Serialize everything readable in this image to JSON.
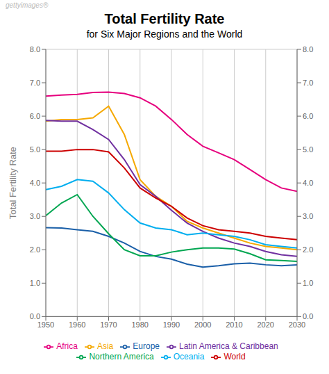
{
  "chart_data": {
    "type": "line",
    "title": "Total Fertility Rate",
    "subtitle": "for Six Major Regions and the World",
    "y_label": "Total Fertility Rate",
    "annotations": [
      "gettyimages®"
    ],
    "x": [
      1950,
      1955,
      1960,
      1965,
      1970,
      1975,
      1980,
      1985,
      1990,
      1995,
      2000,
      2005,
      2010,
      2015,
      2020,
      2025,
      2030
    ],
    "series": [
      {
        "name": "Africa",
        "color": "#e6007e",
        "values": [
          6.6,
          6.63,
          6.65,
          6.71,
          6.72,
          6.68,
          6.55,
          6.3,
          5.9,
          5.45,
          5.1,
          4.9,
          4.7,
          4.4,
          4.1,
          3.85,
          3.75
        ]
      },
      {
        "name": "Asia",
        "color": "#f5a800",
        "values": [
          5.85,
          5.9,
          5.9,
          5.95,
          6.3,
          5.45,
          4.1,
          3.6,
          3.3,
          2.85,
          2.65,
          2.5,
          2.35,
          2.2,
          2.1,
          2.05,
          2.0
        ]
      },
      {
        "name": "Europe",
        "color": "#1a5fa8",
        "values": [
          2.66,
          2.65,
          2.6,
          2.55,
          2.4,
          2.2,
          1.95,
          1.8,
          1.72,
          1.57,
          1.48,
          1.52,
          1.58,
          1.6,
          1.55,
          1.52,
          1.55
        ]
      },
      {
        "name": "Latin America & Caribbean",
        "color": "#7030a0",
        "values": [
          5.87,
          5.85,
          5.85,
          5.6,
          5.3,
          4.7,
          3.95,
          3.6,
          3.18,
          2.8,
          2.55,
          2.35,
          2.2,
          2.1,
          1.95,
          1.85,
          1.8
        ]
      },
      {
        "name": "Northern America",
        "color": "#00a651",
        "values": [
          3.02,
          3.4,
          3.65,
          3.0,
          2.48,
          2.0,
          1.82,
          1.82,
          1.93,
          2.0,
          2.05,
          2.05,
          2.02,
          1.88,
          1.7,
          1.68,
          1.65
        ]
      },
      {
        "name": "Oceania",
        "color": "#00aeef",
        "values": [
          3.8,
          3.9,
          4.1,
          4.05,
          3.7,
          3.2,
          2.8,
          2.65,
          2.6,
          2.45,
          2.5,
          2.45,
          2.4,
          2.3,
          2.15,
          2.1,
          2.05
        ]
      },
      {
        "name": "World",
        "color": "#cc0000",
        "values": [
          4.95,
          4.95,
          5.0,
          5.0,
          4.93,
          4.45,
          3.85,
          3.55,
          3.3,
          2.95,
          2.72,
          2.6,
          2.55,
          2.5,
          2.4,
          2.35,
          2.3
        ]
      }
    ],
    "xlim": [
      1950,
      2030
    ],
    "xticks": [
      1950,
      1960,
      1970,
      1980,
      1990,
      2000,
      2010,
      2020,
      2030
    ],
    "ylim": [
      0,
      8
    ],
    "yticks": [
      {
        "value": 0,
        "label": "0.0"
      },
      {
        "value": 1,
        "label": "1.0"
      },
      {
        "value": 2,
        "label": "2.0"
      },
      {
        "value": 3,
        "label": "3.0"
      },
      {
        "value": 4,
        "label": "4.0"
      },
      {
        "value": 5,
        "label": "5.0"
      },
      {
        "value": 6,
        "label": "6.0"
      },
      {
        "value": 7,
        "label": "7.0"
      },
      {
        "value": 8,
        "label": "8.0"
      }
    ],
    "y2lim": [
      0,
      8
    ],
    "y2ticks": [
      {
        "value": 0,
        "label": "0.0"
      },
      {
        "value": 1,
        "label": "1.0"
      },
      {
        "value": 2,
        "label": "2.0"
      },
      {
        "value": 3,
        "label": "3.0"
      },
      {
        "value": 4,
        "label": "4.0"
      },
      {
        "value": 5,
        "label": "5.0"
      },
      {
        "value": 6,
        "label": "6.0"
      },
      {
        "value": 7,
        "label": "7.0"
      },
      {
        "value": 8,
        "label": "8.0"
      }
    ],
    "grid": true,
    "legend": "bottom"
  }
}
